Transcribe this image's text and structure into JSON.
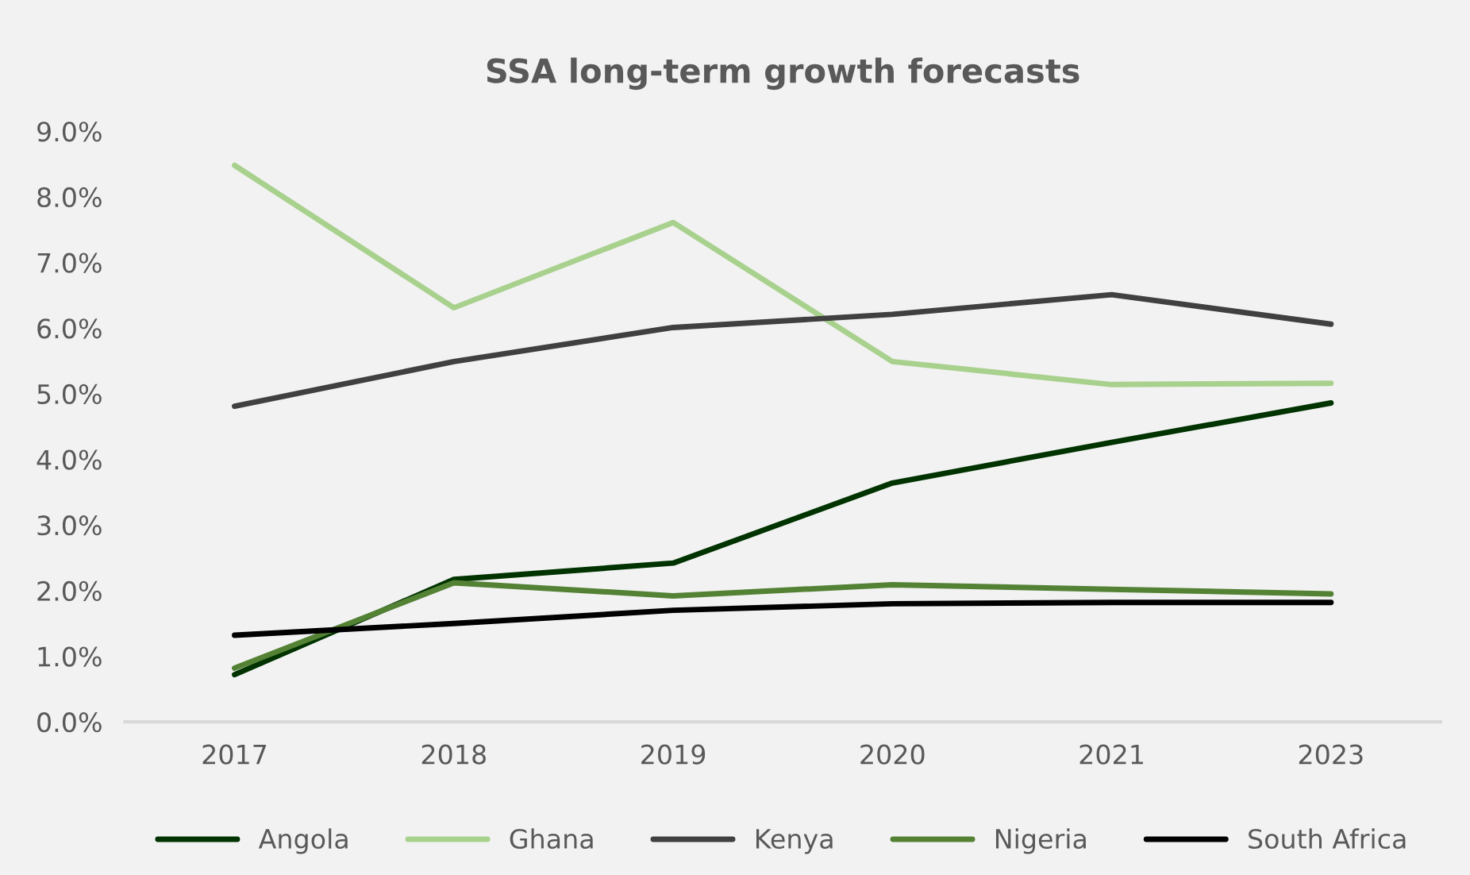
{
  "chart_data": {
    "type": "line",
    "title": "SSA long-term growth forecasts",
    "categories": [
      "2017",
      "2018",
      "2019",
      "2020",
      "2021",
      "2023"
    ],
    "series": [
      {
        "name": "Angola",
        "color": "#003300",
        "values": [
          0.72,
          2.17,
          2.42,
          3.64,
          4.26,
          4.86
        ]
      },
      {
        "name": "Ghana",
        "color": "#a9d18e",
        "values": [
          8.48,
          6.31,
          7.61,
          5.49,
          5.14,
          5.16
        ]
      },
      {
        "name": "Kenya",
        "color": "#404040",
        "values": [
          4.81,
          5.49,
          6.01,
          6.21,
          6.51,
          6.06
        ]
      },
      {
        "name": "Nigeria",
        "color": "#548235",
        "values": [
          0.82,
          2.12,
          1.92,
          2.09,
          2.02,
          1.95
        ]
      },
      {
        "name": "South Africa",
        "color": "#000000",
        "values": [
          1.32,
          1.5,
          1.7,
          1.8,
          1.82,
          1.82
        ]
      }
    ],
    "ylim": [
      0,
      9
    ],
    "yticks": [
      {
        "value": 0,
        "label": "0.0%"
      },
      {
        "value": 1,
        "label": "1.0%"
      },
      {
        "value": 2,
        "label": "2.0%"
      },
      {
        "value": 3,
        "label": "3.0%"
      },
      {
        "value": 4,
        "label": "4.0%"
      },
      {
        "value": 5,
        "label": "5.0%"
      },
      {
        "value": 6,
        "label": "6.0%"
      },
      {
        "value": 7,
        "label": "7.0%"
      },
      {
        "value": 8,
        "label": "8.0%"
      },
      {
        "value": 9,
        "label": "9.0%"
      }
    ],
    "grid": false,
    "legend": "bottom",
    "marker": "none",
    "line_style": "solid"
  }
}
